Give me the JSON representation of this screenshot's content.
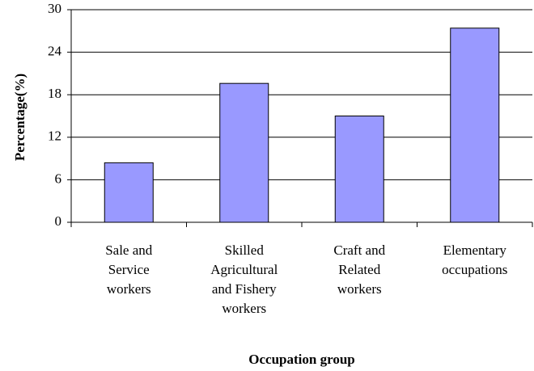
{
  "chart_data": {
    "type": "bar",
    "x_label": "Occupation group",
    "y_label": "Percentage(%)",
    "categories": [
      "Sale and\nService\nworkers",
      "Skilled\nAgricultural\nand  Fishery\nworkers",
      "Craft and\nRelated\nworkers",
      "Elementary\noccupations"
    ],
    "values": [
      8.4,
      19.6,
      15.0,
      27.4
    ],
    "color": "#9999ff",
    "ylim": [
      0,
      30
    ],
    "yticks": [
      0,
      6,
      12,
      18,
      24,
      30
    ],
    "grid": true
  }
}
